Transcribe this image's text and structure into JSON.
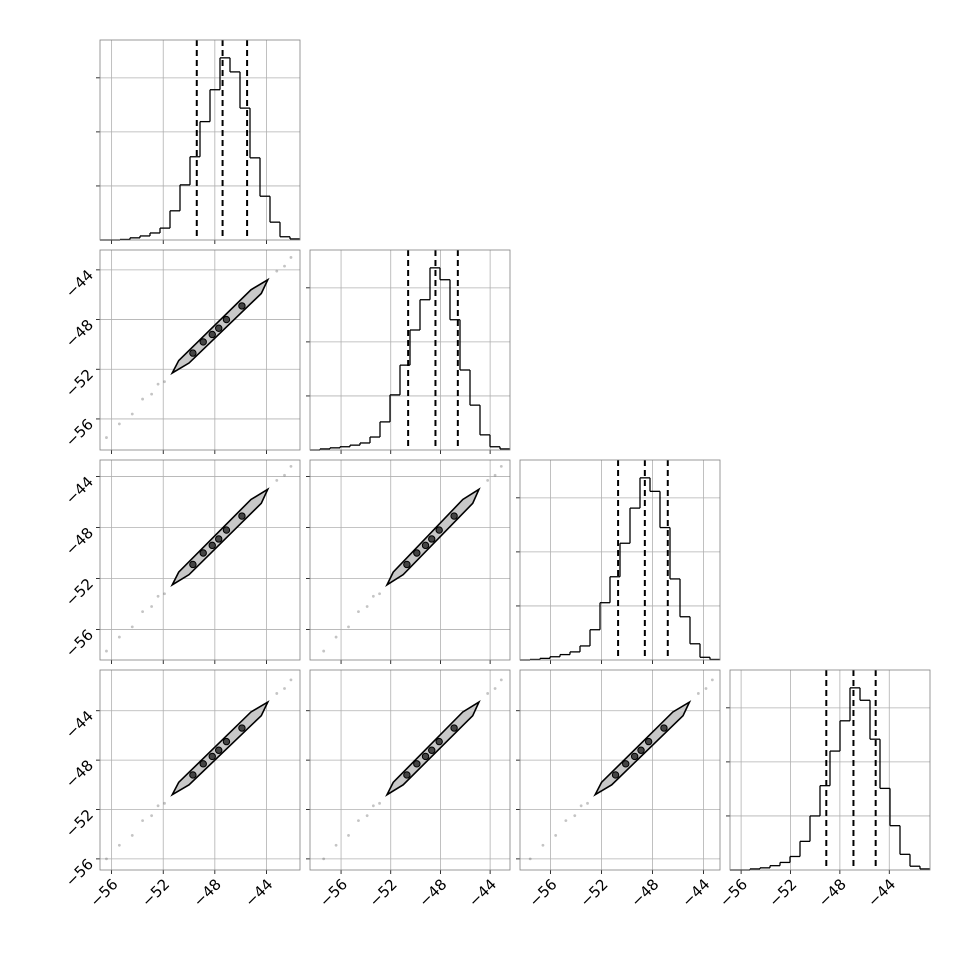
{
  "chart_data": {
    "type": "corner",
    "hist_ylim": [
      0,
      3700
    ],
    "hist_yticks": [
      1000,
      2000,
      3000
    ],
    "grid": true,
    "variables": [
      {
        "xlim": [
          -56.9,
          -41.4
        ],
        "xticks": [
          {
            "value": -56,
            "label": "−56"
          },
          {
            "value": -52,
            "label": "−52"
          },
          {
            "value": -48,
            "label": "−48"
          },
          {
            "value": -44,
            "label": "−44"
          }
        ],
        "bins": [
          -56.9,
          -56.125,
          -55.35,
          -54.575,
          -53.8,
          -53.025,
          -52.25,
          -51.475,
          -50.7,
          -49.925,
          -49.15,
          -48.375,
          -47.6,
          -46.825,
          -46.05,
          -45.275,
          -44.5,
          -43.725,
          -42.95,
          -42.175,
          -41.4
        ],
        "counts": [
          0,
          0,
          10,
          40,
          75,
          130,
          220,
          540,
          1020,
          1540,
          2190,
          2780,
          3370,
          3110,
          2440,
          1520,
          810,
          330,
          60,
          20
        ],
        "quantiles": [
          -49.4,
          -47.4,
          -45.5
        ]
      },
      {
        "xlim": [
          -58.5,
          -42.4
        ],
        "xticks": [
          {
            "value": -56,
            "label": "−56"
          },
          {
            "value": -52,
            "label": "−52"
          },
          {
            "value": -48,
            "label": "−48"
          },
          {
            "value": -44,
            "label": "−44"
          }
        ],
        "bins": [
          -58.5,
          -57.695,
          -56.89,
          -56.085,
          -55.28,
          -54.475,
          -53.67,
          -52.865,
          -52.06,
          -51.255,
          -50.45,
          -49.645,
          -48.84,
          -48.035,
          -47.23,
          -46.425,
          -45.62,
          -44.815,
          -44.01,
          -43.205,
          -42.4
        ],
        "counts": [
          0,
          20,
          40,
          60,
          90,
          130,
          240,
          520,
          1020,
          1570,
          2220,
          2780,
          3370,
          3150,
          2410,
          1480,
          830,
          280,
          60,
          20
        ],
        "quantiles": [
          -50.6,
          -48.4,
          -46.6
        ]
      },
      {
        "xlim": [
          -58.4,
          -42.7
        ],
        "xticks": [
          {
            "value": -56,
            "label": "−56"
          },
          {
            "value": -52,
            "label": "−52"
          },
          {
            "value": -48,
            "label": "−48"
          },
          {
            "value": -44,
            "label": "−44"
          }
        ],
        "bins": [
          -58.4,
          -57.615,
          -56.83,
          -56.045,
          -55.26,
          -54.475,
          -53.69,
          -52.905,
          -52.12,
          -51.335,
          -50.55,
          -49.765,
          -48.98,
          -48.195,
          -47.41,
          -46.625,
          -45.84,
          -45.055,
          -44.27,
          -43.485,
          -42.7
        ],
        "counts": [
          0,
          10,
          30,
          60,
          100,
          150,
          260,
          560,
          1060,
          1540,
          2160,
          2810,
          3370,
          3120,
          2450,
          1500,
          800,
          300,
          50,
          10
        ],
        "quantiles": [
          -50.7,
          -48.6,
          -46.8
        ]
      },
      {
        "xlim": [
          -56.9,
          -40.7
        ],
        "xticks": [
          {
            "value": -56,
            "label": "−56"
          },
          {
            "value": -52,
            "label": "−52"
          },
          {
            "value": -48,
            "label": "−48"
          },
          {
            "value": -44,
            "label": "−44"
          }
        ],
        "bins": [
          -56.9,
          -56.09,
          -55.28,
          -54.47,
          -53.66,
          -52.85,
          -52.04,
          -51.23,
          -50.42,
          -49.61,
          -48.8,
          -47.99,
          -47.18,
          -46.37,
          -45.56,
          -44.75,
          -43.94,
          -43.13,
          -42.32,
          -41.51,
          -40.7
        ],
        "counts": [
          0,
          0,
          20,
          40,
          80,
          140,
          250,
          530,
          1000,
          1560,
          2200,
          2760,
          3370,
          3140,
          2420,
          1510,
          820,
          290,
          70,
          20
        ],
        "quantiles": [
          -49.1,
          -46.9,
          -45.1
        ]
      }
    ],
    "panels": [
      {
        "x_var": 0,
        "y_var": 1,
        "contour_x": [
          -51.3,
          -50.8,
          -45.2,
          -43.9,
          -44.4,
          -50.0
        ],
        "contour_y": [
          -52.3,
          -51.3,
          -45.6,
          -44.8,
          -45.9,
          -51.5
        ],
        "dots_x": [
          -49.7,
          -48.9,
          -48.2,
          -47.7,
          -47.1,
          -45.9
        ],
        "dots_y": [
          -50.7,
          -49.8,
          -49.2,
          -48.7,
          -48.0,
          -46.9
        ],
        "scatter_x": [
          -56.4,
          -55.4,
          -54.4,
          -53.6,
          -52.9,
          -52.4,
          -51.9,
          -43.2,
          -42.6,
          -42.1
        ],
        "scatter_y": [
          -57.5,
          -56.4,
          -55.6,
          -54.4,
          -54.0,
          -53.2,
          -53.0,
          -44.1,
          -43.7,
          -43.0
        ]
      },
      {
        "x_var": 0,
        "y_var": 2,
        "contour_x": [
          -51.3,
          -50.8,
          -45.2,
          -43.9,
          -44.4,
          -50.0
        ],
        "contour_y": [
          -52.5,
          -51.5,
          -45.8,
          -45.0,
          -46.1,
          -51.7
        ],
        "dots_x": [
          -49.7,
          -48.9,
          -48.2,
          -47.7,
          -47.1,
          -45.9
        ],
        "dots_y": [
          -50.9,
          -50.0,
          -49.4,
          -48.9,
          -48.2,
          -47.1
        ],
        "scatter_x": [
          -56.4,
          -55.4,
          -54.4,
          -53.6,
          -52.9,
          -52.4,
          -51.9,
          -43.2,
          -42.6,
          -42.1
        ],
        "scatter_y": [
          -57.7,
          -56.6,
          -55.8,
          -54.6,
          -54.2,
          -53.4,
          -53.2,
          -44.3,
          -43.9,
          -43.2
        ]
      },
      {
        "x_var": 1,
        "y_var": 2,
        "contour_x": [
          -52.3,
          -51.8,
          -46.2,
          -44.9,
          -45.4,
          -51.0
        ],
        "contour_y": [
          -52.5,
          -51.5,
          -45.8,
          -45.0,
          -46.1,
          -51.7
        ],
        "dots_x": [
          -50.7,
          -49.9,
          -49.2,
          -48.7,
          -48.1,
          -46.9
        ],
        "dots_y": [
          -50.9,
          -50.0,
          -49.4,
          -48.9,
          -48.2,
          -47.1
        ],
        "scatter_x": [
          -57.4,
          -56.4,
          -55.4,
          -54.6,
          -53.9,
          -53.4,
          -52.9,
          -44.2,
          -43.6,
          -43.1
        ],
        "scatter_y": [
          -57.7,
          -56.6,
          -55.8,
          -54.6,
          -54.2,
          -53.4,
          -53.2,
          -44.3,
          -43.9,
          -43.2
        ]
      },
      {
        "x_var": 0,
        "y_var": 3,
        "contour_x": [
          -51.3,
          -50.8,
          -45.2,
          -43.9,
          -44.4,
          -50.0
        ],
        "contour_y": [
          -50.8,
          -49.8,
          -44.1,
          -43.3,
          -44.4,
          -50.0
        ],
        "dots_x": [
          -49.7,
          -48.9,
          -48.2,
          -47.7,
          -47.1,
          -45.9
        ],
        "dots_y": [
          -49.2,
          -48.3,
          -47.7,
          -47.2,
          -46.5,
          -45.4
        ],
        "scatter_x": [
          -56.4,
          -55.4,
          -54.4,
          -53.6,
          -52.9,
          -52.4,
          -51.9,
          -43.2,
          -42.6,
          -42.1
        ],
        "scatter_y": [
          -56.0,
          -54.9,
          -54.1,
          -52.9,
          -52.5,
          -51.7,
          -51.5,
          -42.6,
          -42.2,
          -41.5
        ]
      },
      {
        "x_var": 1,
        "y_var": 3,
        "contour_x": [
          -52.3,
          -51.8,
          -46.2,
          -44.9,
          -45.4,
          -51.0
        ],
        "contour_y": [
          -50.8,
          -49.8,
          -44.1,
          -43.3,
          -44.4,
          -50.0
        ],
        "dots_x": [
          -50.7,
          -49.9,
          -49.2,
          -48.7,
          -48.1,
          -46.9
        ],
        "dots_y": [
          -49.2,
          -48.3,
          -47.7,
          -47.2,
          -46.5,
          -45.4
        ],
        "scatter_x": [
          -57.4,
          -56.4,
          -55.4,
          -54.6,
          -53.9,
          -53.4,
          -52.9,
          -44.2,
          -43.6,
          -43.1
        ],
        "scatter_y": [
          -56.0,
          -54.9,
          -54.1,
          -52.9,
          -52.5,
          -51.7,
          -51.5,
          -42.6,
          -42.2,
          -41.5
        ]
      },
      {
        "x_var": 2,
        "y_var": 3,
        "contour_x": [
          -52.5,
          -52.0,
          -46.4,
          -45.1,
          -45.6,
          -51.2
        ],
        "contour_y": [
          -50.8,
          -49.8,
          -44.1,
          -43.3,
          -44.4,
          -50.0
        ],
        "dots_x": [
          -50.9,
          -50.1,
          -49.4,
          -48.9,
          -48.3,
          -47.1
        ],
        "dots_y": [
          -49.2,
          -48.3,
          -47.7,
          -47.2,
          -46.5,
          -45.4
        ],
        "scatter_x": [
          -57.6,
          -56.6,
          -55.6,
          -54.8,
          -54.1,
          -53.6,
          -53.1,
          -44.4,
          -43.8,
          -43.3
        ],
        "scatter_y": [
          -56.0,
          -54.9,
          -54.1,
          -52.9,
          -52.5,
          -51.7,
          -51.5,
          -42.6,
          -42.2,
          -41.5
        ]
      }
    ]
  }
}
